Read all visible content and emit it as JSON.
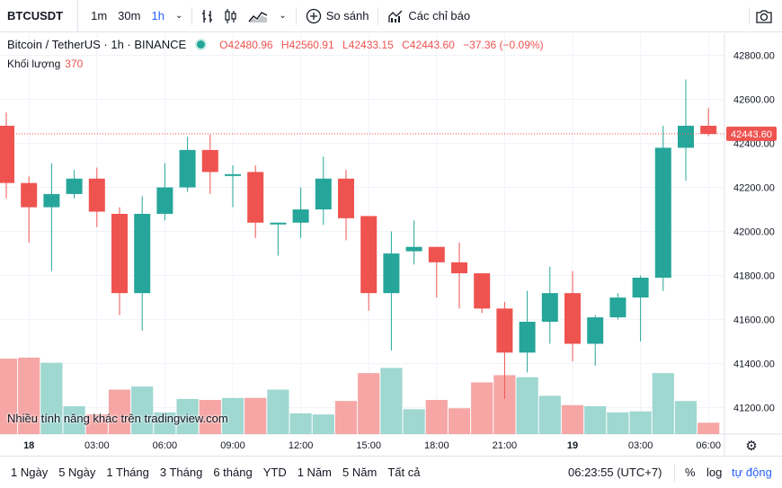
{
  "toolbar": {
    "symbol": "BTCUSDT",
    "timeframes": [
      "1m",
      "30m",
      "1h"
    ],
    "active_timeframe": "1h",
    "compare_label": "So sánh",
    "indicators_label": "Các chỉ báo",
    "icons": [
      "bar-style-icon",
      "candle-style-icon",
      "area-style-icon",
      "chevron-down-icon",
      "plus-circle-icon",
      "indicators-icon",
      "camera-icon"
    ]
  },
  "legend": {
    "title": "Bitcoin / TetherUS · 1h · BINANCE",
    "o_label": "O",
    "o": "42480.96",
    "h_label": "H",
    "h": "42560.91",
    "l_label": "L",
    "l": "42433.15",
    "c_label": "C",
    "c": "42443.60",
    "change": "−37.36 (−0.09%)",
    "volume_label": "Khối lượng",
    "volume_value": "370"
  },
  "watermark": "Nhiều tính năng khác trên tradingview.com",
  "bottom": {
    "ranges": [
      "1 Ngày",
      "5 Ngày",
      "1 Tháng",
      "3 Tháng",
      "6 tháng",
      "YTD",
      "1 Năm",
      "5 Năm",
      "Tất cả"
    ],
    "clock": "06:23:55 (UTC+7)",
    "percent": "%",
    "log": "log",
    "auto": "tự động"
  },
  "colors": {
    "up": "#26a69a",
    "down": "#ef5350",
    "up_vol": "#9fd7d1",
    "down_vol": "#f5a6a5",
    "grid": "#f0f3fa"
  },
  "chart_data": {
    "type": "candlestick",
    "title": "Bitcoin / TetherUS · 1h · BINANCE",
    "ylim": [
      41080,
      42900
    ],
    "y_ticks": [
      42800,
      42600,
      42400,
      42200,
      42000,
      41800,
      41600,
      41400,
      41200
    ],
    "y_tick_labels": [
      "42800.00",
      "42600.00",
      "42400.00",
      "42200.00",
      "42000.00",
      "41800.00",
      "41600.00",
      "41400.00",
      "41200.00"
    ],
    "x_tick_labels": [
      {
        "label": "18",
        "bar": 1
      },
      {
        "label": "03:00",
        "bar": 4
      },
      {
        "label": "06:00",
        "bar": 7
      },
      {
        "label": "09:00",
        "bar": 10
      },
      {
        "label": "12:00",
        "bar": 13
      },
      {
        "label": "15:00",
        "bar": 16
      },
      {
        "label": "18:00",
        "bar": 19
      },
      {
        "label": "21:00",
        "bar": 22
      },
      {
        "label": "19",
        "bar": 25
      },
      {
        "label": "03:00",
        "bar": 28
      },
      {
        "label": "06:00",
        "bar": 31
      }
    ],
    "last_price": 42443.6,
    "last_price_label": "42443.60",
    "ohlc": [
      [
        42480,
        42540,
        42150,
        42220
      ],
      [
        42220,
        42250,
        41950,
        42110
      ],
      [
        42110,
        42310,
        41820,
        42170
      ],
      [
        42170,
        42280,
        42150,
        42240
      ],
      [
        42240,
        42290,
        42020,
        42090
      ],
      [
        42080,
        42110,
        41620,
        41720
      ],
      [
        41720,
        42160,
        41550,
        42080
      ],
      [
        42080,
        42310,
        42050,
        42200
      ],
      [
        42200,
        42430,
        42180,
        42370
      ],
      [
        42370,
        42440,
        42170,
        42270
      ],
      [
        42260,
        42300,
        42110,
        42260
      ],
      [
        42270,
        42300,
        41970,
        42040
      ],
      [
        42040,
        42040,
        41890,
        42040
      ],
      [
        42040,
        42200,
        41970,
        42100
      ],
      [
        42100,
        42340,
        42030,
        42240
      ],
      [
        42240,
        42280,
        41960,
        42060
      ],
      [
        42070,
        42070,
        41640,
        41720
      ],
      [
        41720,
        42000,
        41460,
        41900
      ],
      [
        41910,
        42050,
        41850,
        41930
      ],
      [
        41930,
        41930,
        41700,
        41860
      ],
      [
        41860,
        41950,
        41650,
        41810
      ],
      [
        41810,
        41810,
        41630,
        41650
      ],
      [
        41650,
        41680,
        41240,
        41450
      ],
      [
        41450,
        41730,
        41360,
        41590
      ],
      [
        41590,
        41840,
        41490,
        41720
      ],
      [
        41720,
        41820,
        41410,
        41490
      ],
      [
        41490,
        41620,
        41390,
        41610
      ],
      [
        41610,
        41720,
        41600,
        41700
      ],
      [
        41700,
        41800,
        41500,
        41790
      ],
      [
        41790,
        42480,
        41730,
        42380
      ],
      [
        42380,
        42690,
        42230,
        42480
      ],
      [
        42480,
        42560,
        42433,
        42443
      ]
    ],
    "volume_note": "relative volume bar heights (0-1 of volume pane)",
    "volume": [
      0.73,
      0.74,
      0.69,
      0.27,
      0.19,
      0.43,
      0.46,
      0.21,
      0.34,
      0.33,
      0.35,
      0.35,
      0.43,
      0.2,
      0.19,
      0.32,
      0.59,
      0.64,
      0.24,
      0.33,
      0.25,
      0.5,
      0.57,
      0.55,
      0.37,
      0.28,
      0.27,
      0.21,
      0.22,
      0.59,
      0.32,
      0.11
    ]
  }
}
